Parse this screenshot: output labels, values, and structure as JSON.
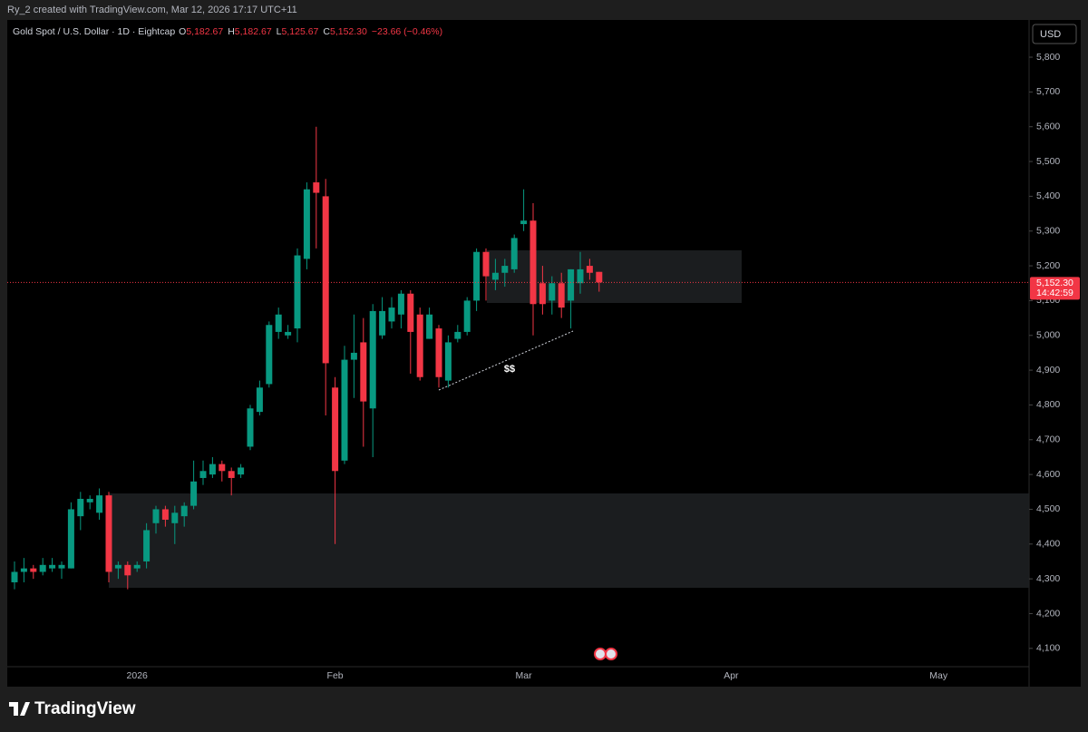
{
  "page": {
    "note": "Ry_2 created with TradingView.com, Mar 12, 2026 17:17 UTC+11",
    "brand": "TradingView",
    "currency": "USD"
  },
  "chart_data": {
    "type": "candlestick",
    "symbol": "Gold Spot / U.S. Dollar · 1D · Eightcap",
    "legend": [
      {
        "key": "O",
        "value": "5,182.67"
      },
      {
        "key": "H",
        "value": "5,182.67"
      },
      {
        "key": "L",
        "value": "5,125.67"
      },
      {
        "key": "C",
        "value": "5,152.30"
      }
    ],
    "change": "−23.66 (−0.46%)",
    "last_price_label": "5,152.30",
    "countdown": "14:42:59",
    "annotations": [
      "$$"
    ],
    "up_color": "#089981",
    "down_color": "#f23645",
    "grid": false,
    "categories": [
      null,
      null,
      null,
      null,
      null,
      null,
      null,
      null,
      null,
      null,
      null,
      null,
      null,
      "2026",
      null,
      null,
      null,
      null,
      null,
      null,
      null,
      null,
      null,
      null,
      null,
      null,
      null,
      null,
      null,
      null,
      null,
      null,
      null,
      null,
      "Feb",
      null,
      null,
      null,
      null,
      null,
      null,
      null,
      null,
      null,
      null,
      null,
      null,
      null,
      null,
      null,
      null,
      null,
      null,
      null,
      "Mar",
      null,
      null,
      null,
      null,
      null,
      null,
      null,
      null,
      null,
      null,
      null,
      null,
      null,
      null,
      null,
      null,
      null,
      null,
      null,
      null,
      null,
      "Apr",
      null,
      null,
      null,
      null,
      null,
      null,
      null,
      null,
      null,
      null,
      null,
      null,
      null,
      null,
      null,
      null,
      null,
      null,
      null,
      null,
      null,
      "May",
      null,
      null,
      null,
      null,
      null,
      null,
      null,
      null,
      null
    ],
    "open": [
      4290,
      4320,
      4330,
      4320,
      4330,
      4330,
      4330,
      4480,
      4520,
      4490,
      4540,
      4330,
      4340,
      4330,
      4350,
      4460,
      4500,
      4460,
      4480,
      4510,
      4590,
      4600,
      4630,
      4610,
      4600,
      4680,
      4780,
      4860,
      5010,
      5000,
      5020,
      5220,
      5440,
      5400,
      4850,
      4640,
      4930,
      4980,
      4790,
      5000,
      5040,
      5060,
      5120,
      5060,
      4990,
      5020,
      4870,
      4990,
      5010,
      5100,
      5240,
      5160,
      5180,
      5190,
      5320,
      5330,
      5150,
      5100,
      5150,
      5100,
      5150,
      5200,
      5182.67,
      null,
      null,
      null,
      null,
      null,
      null,
      null,
      null,
      null,
      null,
      null,
      null,
      null,
      null,
      null,
      null,
      null,
      null,
      null,
      null,
      null,
      null,
      null,
      null,
      null,
      null,
      null,
      null,
      null,
      null,
      null,
      null,
      null,
      null,
      null,
      null,
      null,
      null,
      null,
      null,
      null,
      null,
      null,
      null,
      null
    ],
    "high": [
      4350,
      4360,
      4340,
      4360,
      4360,
      4350,
      4520,
      4550,
      4540,
      4560,
      4550,
      4350,
      4350,
      4350,
      4460,
      4510,
      4510,
      4510,
      4520,
      4640,
      4640,
      4650,
      4640,
      4620,
      4630,
      4800,
      4870,
      5040,
      5080,
      5030,
      5250,
      5440,
      5600,
      5450,
      4880,
      4970,
      5060,
      5050,
      5090,
      5110,
      5110,
      5130,
      5130,
      5080,
      5080,
      5030,
      5000,
      5030,
      5110,
      5250,
      5250,
      5220,
      5220,
      5290,
      5420,
      5380,
      5200,
      5170,
      5180,
      5190,
      5240,
      5220,
      5182.67,
      null,
      null,
      null,
      null,
      null,
      null,
      null,
      null,
      null,
      null,
      null,
      null,
      null,
      null,
      null,
      null,
      null,
      null,
      null,
      null,
      null,
      null,
      null,
      null,
      null,
      null,
      null,
      null,
      null,
      null,
      null,
      null,
      null,
      null,
      null,
      null,
      null,
      null,
      null,
      null,
      null,
      null,
      null,
      null,
      null
    ],
    "low": [
      4270,
      4290,
      4300,
      4310,
      4320,
      4300,
      4330,
      4440,
      4500,
      4470,
      4290,
      4300,
      4270,
      4320,
      4330,
      4430,
      4450,
      4400,
      4450,
      4500,
      4570,
      4590,
      4580,
      4540,
      4590,
      4670,
      4770,
      4850,
      4990,
      4990,
      4980,
      5190,
      5250,
      4770,
      4400,
      4630,
      4820,
      4680,
      4650,
      4990,
      5020,
      5020,
      4890,
      4870,
      4990,
      4850,
      4850,
      4980,
      5000,
      5070,
      5100,
      5130,
      5140,
      5180,
      5300,
      5000,
      5060,
      5060,
      5050,
      5020,
      5120,
      5160,
      5125.67,
      null,
      null,
      null,
      null,
      null,
      null,
      null,
      null,
      null,
      null,
      null,
      null,
      null,
      null,
      null,
      null,
      null,
      null,
      null,
      null,
      null,
      null,
      null,
      null,
      null,
      null,
      null,
      null,
      null,
      null,
      null,
      null,
      null,
      null,
      null,
      null,
      null,
      null,
      null,
      null,
      null,
      null,
      null,
      null,
      null
    ],
    "close": [
      4320,
      4330,
      4320,
      4340,
      4340,
      4340,
      4500,
      4530,
      4530,
      4540,
      4320,
      4340,
      4310,
      4340,
      4440,
      4500,
      4470,
      4490,
      4510,
      4580,
      4610,
      4630,
      4610,
      4590,
      4620,
      4790,
      4850,
      5030,
      5060,
      5010,
      5230,
      5420,
      5410,
      4920,
      4610,
      4930,
      4950,
      4810,
      5070,
      5070,
      5080,
      5120,
      5010,
      4880,
      5060,
      4880,
      4980,
      5010,
      5100,
      5240,
      5170,
      5180,
      5200,
      5280,
      5330,
      5090,
      5090,
      5150,
      5080,
      5190,
      5190,
      5180,
      5152.3,
      null,
      null,
      null,
      null,
      null,
      null,
      null,
      null,
      null,
      null,
      null,
      null,
      null,
      null,
      null,
      null,
      null,
      null,
      null,
      null,
      null,
      null,
      null,
      null,
      null,
      null,
      null,
      null,
      null,
      null,
      null,
      null,
      null,
      null,
      null,
      null,
      null,
      null,
      null,
      null,
      null,
      null,
      null,
      null,
      null
    ],
    "ylim": [
      3990,
      5907
    ],
    "yticks": [
      {
        "value": 4100,
        "label": "4,100"
      },
      {
        "value": 4200,
        "label": "4,200"
      },
      {
        "value": 4300,
        "label": "4,300"
      },
      {
        "value": 4400,
        "label": "4,400"
      },
      {
        "value": 4500,
        "label": "4,500"
      },
      {
        "value": 4600,
        "label": "4,600"
      },
      {
        "value": 4700,
        "label": "4,700"
      },
      {
        "value": 4800,
        "label": "4,800"
      },
      {
        "value": 4900,
        "label": "4,900"
      },
      {
        "value": 5000,
        "label": "5,000"
      },
      {
        "value": 5100,
        "label": "5,100"
      },
      {
        "value": 5200,
        "label": "5,200"
      },
      {
        "value": 5300,
        "label": "5,300"
      },
      {
        "value": 5400,
        "label": "5,400"
      },
      {
        "value": 5500,
        "label": "5,500"
      },
      {
        "value": 5600,
        "label": "5,600"
      },
      {
        "value": 5700,
        "label": "5,700"
      },
      {
        "value": 5800,
        "label": "5,800"
      }
    ]
  }
}
